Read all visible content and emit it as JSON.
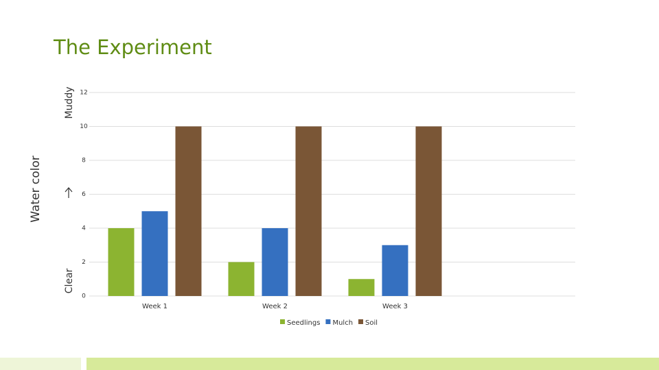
{
  "chart_data": {
    "type": "bar",
    "title": "The Experiment",
    "y_label": "Water color",
    "y_top_label": "Muddy",
    "y_bottom_label": "Clear",
    "categories": [
      "Week 1",
      "Week 2",
      "Week 3",
      null
    ],
    "series": [
      {
        "name": "Seedlings",
        "color": "#8cb431",
        "values": [
          4,
          2,
          1,
          null
        ]
      },
      {
        "name": "Mulch",
        "color": "#3570c0",
        "values": [
          5,
          4,
          3,
          null
        ]
      },
      {
        "name": "Soil",
        "color": "#7a5636",
        "values": [
          10,
          10,
          10,
          null
        ]
      }
    ],
    "ylim": [
      0,
      12
    ],
    "yticks": [
      0,
      2,
      4,
      6,
      8,
      10,
      12
    ],
    "grid": true,
    "legend": "bottom"
  }
}
